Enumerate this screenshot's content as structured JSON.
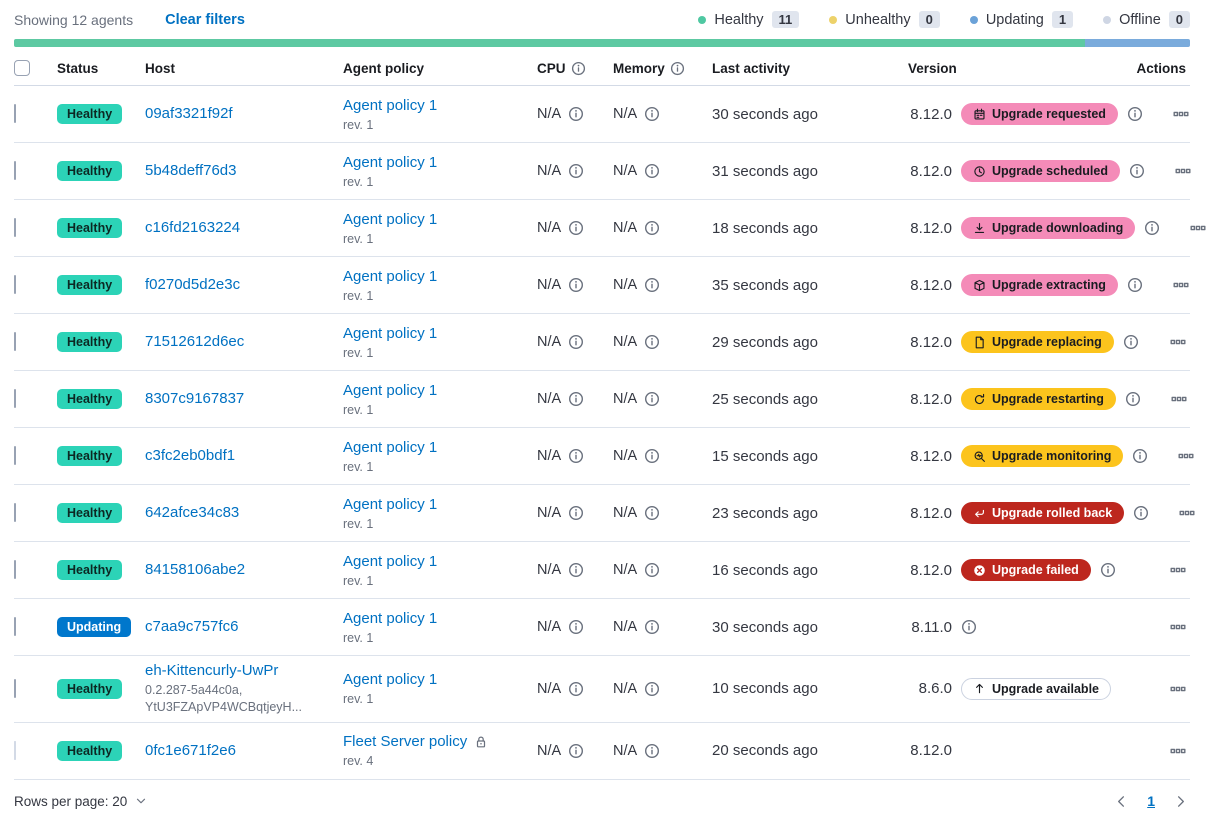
{
  "toolbar": {
    "showing": "Showing 12 agents",
    "clear_filters": "Clear filters",
    "legend": [
      {
        "label": "Healthy",
        "count": "11",
        "color": "#4fc8a2"
      },
      {
        "label": "Unhealthy",
        "count": "0",
        "color": "#edd26a"
      },
      {
        "label": "Updating",
        "count": "1",
        "color": "#6ba2d8"
      },
      {
        "label": "Offline",
        "count": "0",
        "color": "#cfd6e4"
      }
    ]
  },
  "status_bar": {
    "segments": [
      {
        "status": "healthy",
        "color": "#5dc9a2",
        "percent": 91.1
      },
      {
        "status": "updating",
        "color": "#7aabdc",
        "percent": 8.9
      }
    ]
  },
  "colors": {
    "link": "#0071c2",
    "status": {
      "healthy": {
        "bg": "#2cd3b7",
        "fg": "#0c2823"
      },
      "updating": {
        "bg": "#0077cc",
        "fg": "#ffffff"
      }
    },
    "upgrade_badges": {
      "pink": {
        "bg": "#f48bb8",
        "fg": "#1a1c21",
        "border": "transparent"
      },
      "yellow": {
        "bg": "#fcc41d",
        "fg": "#1a1c21",
        "border": "transparent"
      },
      "red": {
        "bg": "#bd271e",
        "fg": "#ffffff",
        "border": "transparent"
      },
      "hollow": {
        "bg": "#ffffff",
        "fg": "#1a1c21",
        "border": "#cbd2e0"
      }
    }
  },
  "table": {
    "headers": {
      "status": "Status",
      "host": "Host",
      "policy": "Agent policy",
      "cpu": "CPU",
      "memory": "Memory",
      "last_activity": "Last activity",
      "version": "Version",
      "actions": "Actions"
    },
    "rows": [
      {
        "status_label": "Healthy",
        "status_type": "healthy",
        "host": "09af3321f92f",
        "host_sub": [],
        "policy": "Agent policy 1",
        "policy_rev": "rev. 1",
        "policy_locked": false,
        "cpu": "N/A",
        "memory": "N/A",
        "last_activity": "30 seconds ago",
        "version": "8.12.0",
        "upgrade": {
          "label": "Upgrade requested",
          "style": "pink",
          "icon": "calendar-icon"
        },
        "version_info": true,
        "checkbox_disabled": false
      },
      {
        "status_label": "Healthy",
        "status_type": "healthy",
        "host": "5b48deff76d3",
        "host_sub": [],
        "policy": "Agent policy 1",
        "policy_rev": "rev. 1",
        "policy_locked": false,
        "cpu": "N/A",
        "memory": "N/A",
        "last_activity": "31 seconds ago",
        "version": "8.12.0",
        "upgrade": {
          "label": "Upgrade scheduled",
          "style": "pink",
          "icon": "clock-icon"
        },
        "version_info": true,
        "checkbox_disabled": false
      },
      {
        "status_label": "Healthy",
        "status_type": "healthy",
        "host": "c16fd2163224",
        "host_sub": [],
        "policy": "Agent policy 1",
        "policy_rev": "rev. 1",
        "policy_locked": false,
        "cpu": "N/A",
        "memory": "N/A",
        "last_activity": "18 seconds ago",
        "version": "8.12.0",
        "upgrade": {
          "label": "Upgrade downloading",
          "style": "pink",
          "icon": "download-icon"
        },
        "version_info": true,
        "checkbox_disabled": false
      },
      {
        "status_label": "Healthy",
        "status_type": "healthy",
        "host": "f0270d5d2e3c",
        "host_sub": [],
        "policy": "Agent policy 1",
        "policy_rev": "rev. 1",
        "policy_locked": false,
        "cpu": "N/A",
        "memory": "N/A",
        "last_activity": "35 seconds ago",
        "version": "8.12.0",
        "upgrade": {
          "label": "Upgrade extracting",
          "style": "pink",
          "icon": "package-icon"
        },
        "version_info": true,
        "checkbox_disabled": false
      },
      {
        "status_label": "Healthy",
        "status_type": "healthy",
        "host": "71512612d6ec",
        "host_sub": [],
        "policy": "Agent policy 1",
        "policy_rev": "rev. 1",
        "policy_locked": false,
        "cpu": "N/A",
        "memory": "N/A",
        "last_activity": "29 seconds ago",
        "version": "8.12.0",
        "upgrade": {
          "label": "Upgrade replacing",
          "style": "yellow",
          "icon": "document-icon"
        },
        "version_info": true,
        "checkbox_disabled": false
      },
      {
        "status_label": "Healthy",
        "status_type": "healthy",
        "host": "8307c9167837",
        "host_sub": [],
        "policy": "Agent policy 1",
        "policy_rev": "rev. 1",
        "policy_locked": false,
        "cpu": "N/A",
        "memory": "N/A",
        "last_activity": "25 seconds ago",
        "version": "8.12.0",
        "upgrade": {
          "label": "Upgrade restarting",
          "style": "yellow",
          "icon": "refresh-icon"
        },
        "version_info": true,
        "checkbox_disabled": false
      },
      {
        "status_label": "Healthy",
        "status_type": "healthy",
        "host": "c3fc2eb0bdf1",
        "host_sub": [],
        "policy": "Agent policy 1",
        "policy_rev": "rev. 1",
        "policy_locked": false,
        "cpu": "N/A",
        "memory": "N/A",
        "last_activity": "15 seconds ago",
        "version": "8.12.0",
        "upgrade": {
          "label": "Upgrade monitoring",
          "style": "yellow",
          "icon": "inspect-icon"
        },
        "version_info": true,
        "checkbox_disabled": false
      },
      {
        "status_label": "Healthy",
        "status_type": "healthy",
        "host": "642afce34c83",
        "host_sub": [],
        "policy": "Agent policy 1",
        "policy_rev": "rev. 1",
        "policy_locked": false,
        "cpu": "N/A",
        "memory": "N/A",
        "last_activity": "23 seconds ago",
        "version": "8.12.0",
        "upgrade": {
          "label": "Upgrade rolled back",
          "style": "red",
          "icon": "return-icon"
        },
        "version_info": true,
        "checkbox_disabled": false
      },
      {
        "status_label": "Healthy",
        "status_type": "healthy",
        "host": "84158106abe2",
        "host_sub": [],
        "policy": "Agent policy 1",
        "policy_rev": "rev. 1",
        "policy_locked": false,
        "cpu": "N/A",
        "memory": "N/A",
        "last_activity": "16 seconds ago",
        "version": "8.12.0",
        "upgrade": {
          "label": "Upgrade failed",
          "style": "red",
          "icon": "cross-circle-icon"
        },
        "version_info": true,
        "checkbox_disabled": false
      },
      {
        "status_label": "Updating",
        "status_type": "updating",
        "host": "c7aa9c757fc6",
        "host_sub": [],
        "policy": "Agent policy 1",
        "policy_rev": "rev. 1",
        "policy_locked": false,
        "cpu": "N/A",
        "memory": "N/A",
        "last_activity": "30 seconds ago",
        "version": "8.11.0",
        "upgrade": null,
        "version_info": true,
        "checkbox_disabled": false
      },
      {
        "status_label": "Healthy",
        "status_type": "healthy",
        "host": "eh-Kittencurly-UwPr",
        "host_sub": [
          "0.2.287-5a44c0a,",
          "YtU3FZApVP4WCBqtjeyH..."
        ],
        "policy": "Agent policy 1",
        "policy_rev": "rev. 1",
        "policy_locked": false,
        "cpu": "N/A",
        "memory": "N/A",
        "last_activity": "10 seconds ago",
        "version": "8.6.0",
        "upgrade": {
          "label": "Upgrade available",
          "style": "hollow",
          "icon": "arrow-up-icon"
        },
        "version_info": false,
        "checkbox_disabled": false
      },
      {
        "status_label": "Healthy",
        "status_type": "healthy",
        "host": "0fc1e671f2e6",
        "host_sub": [],
        "policy": "Fleet Server policy",
        "policy_rev": "rev. 4",
        "policy_locked": true,
        "cpu": "N/A",
        "memory": "N/A",
        "last_activity": "20 seconds ago",
        "version": "8.12.0",
        "upgrade": null,
        "version_info": false,
        "checkbox_disabled": true
      }
    ]
  },
  "footer": {
    "rows_per_page_label": "Rows per page: 20",
    "page": "1"
  }
}
